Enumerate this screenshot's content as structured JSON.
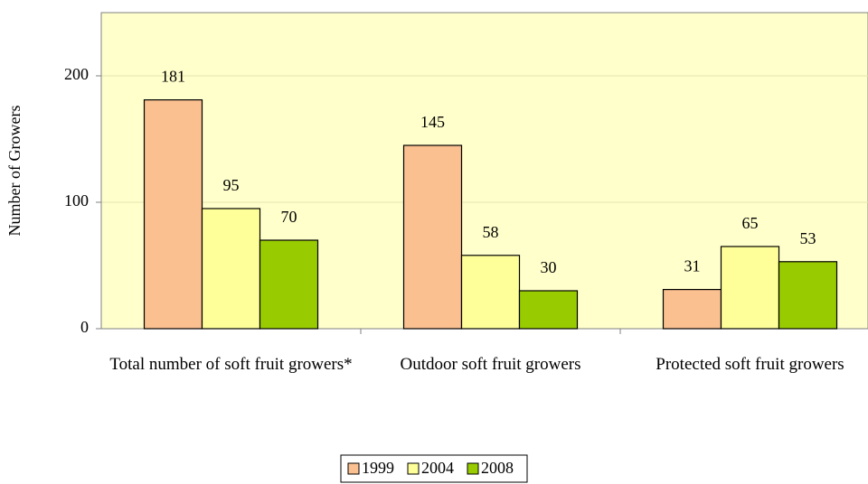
{
  "chart_data": {
    "type": "bar",
    "categories": [
      "Total number of soft fruit growers*",
      "Outdoor soft fruit growers",
      "Protected soft fruit growers"
    ],
    "series": [
      {
        "name": "1999",
        "color": "#fac090",
        "values": [
          181,
          145,
          31
        ]
      },
      {
        "name": "2004",
        "color": "#ffff99",
        "values": [
          95,
          58,
          65
        ]
      },
      {
        "name": "2008",
        "color": "#99cc00",
        "values": [
          70,
          30,
          53
        ]
      }
    ],
    "ylabel": "Number of Growers",
    "ylim": [
      0,
      250
    ],
    "yticks": [
      0,
      100,
      200
    ],
    "grid": true,
    "legend": "bottom"
  }
}
